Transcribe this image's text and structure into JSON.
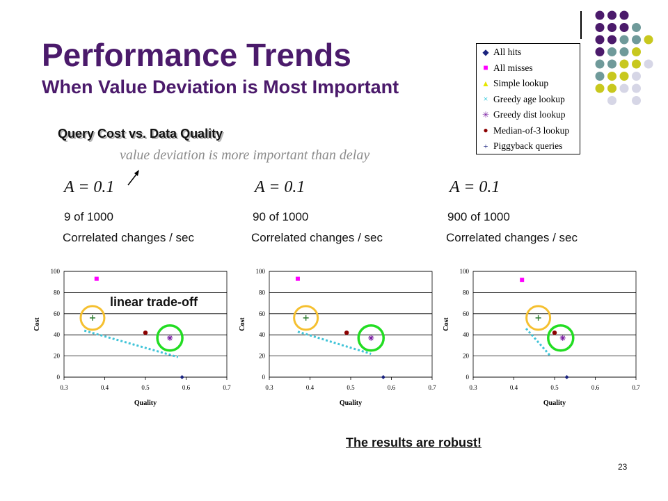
{
  "slide": {
    "title": "Performance Trends",
    "subtitle": "When Value Deviation is Most Important",
    "page_number": "23"
  },
  "legend": [
    {
      "marker": "◆",
      "color": "#1a237e",
      "label": "All hits"
    },
    {
      "marker": "■",
      "color": "#ff00ff",
      "label": "All misses"
    },
    {
      "marker": "▲",
      "color": "#e6e600",
      "label": "Simple lookup"
    },
    {
      "marker": "×",
      "color": "#00bcd4",
      "label": "Greedy age lookup"
    },
    {
      "marker": "✳",
      "color": "#7b1fa2",
      "label": "Greedy dist lookup"
    },
    {
      "marker": "●",
      "color": "#8b0000",
      "label": "Median-of-3 lookup"
    },
    {
      "marker": "+",
      "color": "#1a237e",
      "label": "Piggyback queries"
    }
  ],
  "section": {
    "heading": "Query Cost vs. Data Quality",
    "note": "value deviation is more important than delay"
  },
  "annotations": {
    "linear": "linear trade-off",
    "robust": "The results are robust!"
  },
  "panels": [
    {
      "alabel": "A = 0.1",
      "changes": "9 of 1000",
      "unit": "Correlated changes / sec"
    },
    {
      "alabel": "A = 0.1",
      "changes": "90 of 1000",
      "unit": "Correlated changes / sec"
    },
    {
      "alabel": "A = 0.1",
      "changes": "900 of 1000",
      "unit": "Correlated changes / sec"
    }
  ],
  "chart_data": [
    {
      "type": "scatter",
      "xlabel": "Quality",
      "ylabel": "Cost",
      "xlim": [
        0.3,
        0.7
      ],
      "ylim": [
        0,
        100
      ],
      "xticks": [
        "0.3",
        "0.4",
        "0.5",
        "0.6",
        "0.7"
      ],
      "yticks": [
        "0",
        "20",
        "40",
        "60",
        "80",
        "100"
      ],
      "series": [
        {
          "name": "All hits",
          "points": [
            [
              0.59,
              0
            ]
          ]
        },
        {
          "name": "All misses",
          "points": [
            [
              0.38,
              93
            ]
          ]
        },
        {
          "name": "Greedy dist lookup",
          "points": [
            [
              0.56,
              37
            ]
          ]
        },
        {
          "name": "Median-of-3 lookup",
          "points": [
            [
              0.5,
              42
            ]
          ]
        },
        {
          "name": "Piggyback queries",
          "points": [
            [
              0.37,
              56
            ]
          ]
        }
      ],
      "trend_line": [
        [
          0.35,
          44
        ],
        [
          0.58,
          19
        ]
      ],
      "highlight_circles": [
        [
          0.37,
          56
        ],
        [
          0.56,
          37
        ]
      ]
    },
    {
      "type": "scatter",
      "xlabel": "Quality",
      "ylabel": "Cost",
      "xlim": [
        0.3,
        0.7
      ],
      "ylim": [
        0,
        100
      ],
      "xticks": [
        "0.3",
        "0.4",
        "0.5",
        "0.6",
        "0.7"
      ],
      "yticks": [
        "0",
        "20",
        "40",
        "60",
        "80",
        "100"
      ],
      "series": [
        {
          "name": "All hits",
          "points": [
            [
              0.58,
              0
            ]
          ]
        },
        {
          "name": "All misses",
          "points": [
            [
              0.37,
              93
            ]
          ]
        },
        {
          "name": "Greedy dist lookup",
          "points": [
            [
              0.55,
              37
            ]
          ]
        },
        {
          "name": "Median-of-3 lookup",
          "points": [
            [
              0.49,
              42
            ]
          ]
        },
        {
          "name": "Piggyback queries",
          "points": [
            [
              0.39,
              56
            ]
          ]
        }
      ],
      "trend_line": [
        [
          0.37,
          43
        ],
        [
          0.55,
          22
        ]
      ],
      "highlight_circles": [
        [
          0.39,
          56
        ],
        [
          0.55,
          37
        ]
      ]
    },
    {
      "type": "scatter",
      "xlabel": "Quality",
      "ylabel": "Cost",
      "xlim": [
        0.3,
        0.7
      ],
      "ylim": [
        0,
        100
      ],
      "xticks": [
        "0.3",
        "0.4",
        "0.5",
        "0.6",
        "0.7"
      ],
      "yticks": [
        "0",
        "20",
        "40",
        "60",
        "80",
        "100"
      ],
      "series": [
        {
          "name": "All hits",
          "points": [
            [
              0.53,
              0
            ]
          ]
        },
        {
          "name": "All misses",
          "points": [
            [
              0.42,
              92
            ]
          ]
        },
        {
          "name": "Greedy dist lookup",
          "points": [
            [
              0.52,
              37
            ]
          ]
        },
        {
          "name": "Median-of-3 lookup",
          "points": [
            [
              0.5,
              42
            ]
          ]
        },
        {
          "name": "Piggyback queries",
          "points": [
            [
              0.46,
              56
            ]
          ]
        }
      ],
      "trend_line": [
        [
          0.43,
          46
        ],
        [
          0.49,
          20
        ]
      ],
      "highlight_circles": [
        [
          0.46,
          56
        ],
        [
          0.515,
          37
        ]
      ]
    }
  ]
}
